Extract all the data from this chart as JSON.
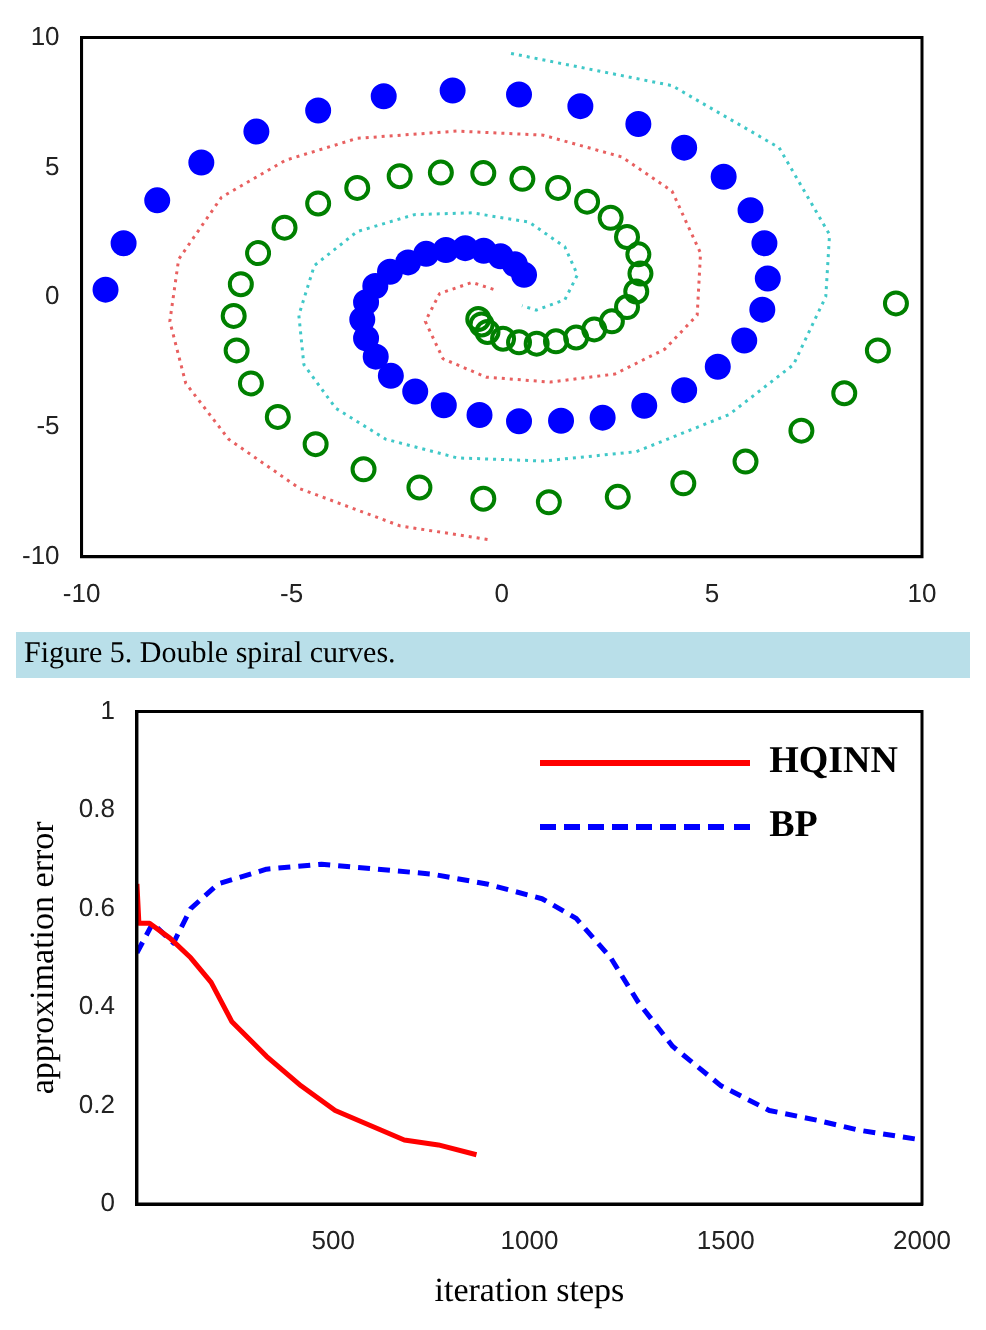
{
  "chart_data": [
    {
      "type": "scatter",
      "marker": "circle",
      "xlim": [
        -10,
        10
      ],
      "ylim": [
        -10,
        10
      ],
      "xticks": [
        -10,
        -5,
        0,
        5,
        10
      ],
      "yticks": [
        -10,
        -5,
        0,
        5,
        10
      ],
      "legend": false,
      "annotations": [
        "Figure 5. Double spiral curves."
      ],
      "series": [
        {
          "color": "#0000ff",
          "x": [
            -9.43,
            -9.0,
            -8.2,
            -7.15,
            -5.84,
            -4.37,
            -2.81,
            -1.17,
            0.41,
            1.87,
            3.25,
            4.34,
            5.28,
            5.92,
            6.25,
            6.33,
            6.2,
            5.77,
            5.14,
            4.34,
            3.39,
            2.4,
            1.41,
            0.41,
            -0.53,
            -1.38,
            -2.06,
            -2.64,
            -3.0,
            -3.23,
            -3.32,
            -3.23,
            -3.01,
            -2.66,
            -2.23,
            -1.8,
            -1.33,
            -0.87,
            -0.43,
            -0.03,
            0.31,
            0.53
          ],
          "values": [
            0.29,
            2.08,
            3.73,
            5.19,
            6.38,
            7.19,
            7.74,
            7.96,
            7.81,
            7.36,
            6.67,
            5.76,
            4.64,
            3.35,
            2.08,
            0.72,
            -0.48,
            -1.67,
            -2.68,
            -3.58,
            -4.18,
            -4.64,
            -4.76,
            -4.78,
            -4.54,
            -4.16,
            -3.63,
            -3.03,
            -2.29,
            -1.58,
            -0.86,
            -0.19,
            0.43,
            0.98,
            1.34,
            1.67,
            1.82,
            1.89,
            1.79,
            1.58,
            1.27,
            0.86
          ]
        },
        {
          "color": "#008000",
          "x": [
            -0.56,
            -0.48,
            -0.34,
            0.03,
            0.41,
            0.83,
            1.29,
            1.77,
            2.2,
            2.62,
            2.98,
            3.2,
            3.3,
            3.25,
            2.98,
            2.59,
            2.03,
            1.34,
            0.49,
            -0.44,
            -1.45,
            -2.43,
            -3.44,
            -4.37,
            -5.17,
            -5.8,
            -6.21,
            -6.38,
            -6.31,
            -5.97,
            -5.33,
            -4.43,
            -3.29,
            -1.96,
            -0.44,
            1.12,
            2.76,
            4.32,
            5.8,
            7.13,
            8.15,
            8.95,
            9.38
          ],
          "values": [
            -0.84,
            -1.05,
            -1.34,
            -1.6,
            -1.74,
            -1.79,
            -1.7,
            -1.55,
            -1.24,
            -0.93,
            -0.38,
            0.22,
            0.91,
            1.65,
            2.32,
            3.06,
            3.68,
            4.21,
            4.56,
            4.78,
            4.8,
            4.66,
            4.21,
            3.61,
            2.68,
            1.7,
            0.5,
            -0.72,
            -2.05,
            -3.32,
            -4.61,
            -5.66,
            -6.63,
            -7.33,
            -7.76,
            -7.9,
            -7.69,
            -7.17,
            -6.33,
            -5.14,
            -3.7,
            -2.05,
            -0.24
          ]
        },
        {
          "type": "line",
          "marker": "none",
          "line_style": "dotted",
          "color": "#40c8c8",
          "x": [
            0.22,
            4.05,
            6.6,
            7.8,
            7.71,
            6.94,
            5.41,
            3.2,
            0.99,
            -1.06,
            -2.76,
            -3.95,
            -4.71,
            -4.83,
            -4.46,
            -3.44,
            -2.08,
            -0.71,
            0.65,
            1.5,
            1.8,
            1.5,
            0.82,
            0.48
          ],
          "values": [
            9.39,
            8.15,
            5.76,
            2.41,
            0.02,
            -2.6,
            -4.52,
            -5.95,
            -6.31,
            -6.19,
            -5.47,
            -4.28,
            -2.6,
            -0.69,
            1.22,
            2.53,
            3.18,
            3.25,
            2.89,
            1.94,
            0.86,
            -0.1,
            -0.5,
            -0.33
          ]
        },
        {
          "type": "line",
          "marker": "none",
          "line_style": "dotted",
          "color": "#e86060",
          "x": [
            -0.34,
            -2.42,
            -4.8,
            -6.5,
            -7.52,
            -7.9,
            -7.69,
            -6.67,
            -5.14,
            -3.44,
            -1.06,
            0.99,
            2.86,
            4.05,
            4.73,
            4.65,
            3.88,
            2.69,
            1.16,
            -0.37,
            -1.4,
            -1.82,
            -1.48,
            -0.71,
            -0.12
          ],
          "values": [
            -9.33,
            -8.81,
            -7.38,
            -5.47,
            -3.32,
            -0.93,
            1.46,
            3.85,
            5.28,
            6.12,
            6.4,
            6.24,
            5.4,
            4.09,
            1.7,
            -0.69,
            -2.0,
            -2.96,
            -3.27,
            -3.08,
            -2.37,
            -0.93,
            0.14,
            0.57,
            0.26
          ]
        }
      ]
    },
    {
      "type": "line",
      "xlabel": "iteration steps",
      "ylabel": "approximation error",
      "xlim": [
        0,
        2000
      ],
      "ylim": [
        0,
        1
      ],
      "xticks": [
        500,
        1000,
        1500,
        2000
      ],
      "yticks": [
        0,
        0.2,
        0.4,
        0.6,
        0.8,
        1
      ],
      "legend": "top right",
      "series": [
        {
          "name": "HQINN",
          "color": "#ff0000",
          "line_style": "solid",
          "x": [
            0,
            5,
            32,
            84,
            137,
            189,
            242,
            330,
            418,
            505,
            593,
            681,
            768,
            865
          ],
          "values": [
            0.65,
            0.57,
            0.57,
            0.54,
            0.5,
            0.45,
            0.37,
            0.3,
            0.24,
            0.19,
            0.16,
            0.13,
            0.12,
            0.1
          ]
        },
        {
          "name": "BP",
          "color": "#0000ff",
          "line_style": "dashed",
          "x": [
            0,
            40,
            93,
            137,
            207,
            330,
            470,
            611,
            751,
            891,
            1032,
            1119,
            1207,
            1277,
            1365,
            1488,
            1611,
            1733,
            1839,
            2000
          ],
          "values": [
            0.51,
            0.57,
            0.53,
            0.6,
            0.65,
            0.68,
            0.69,
            0.68,
            0.67,
            0.65,
            0.62,
            0.58,
            0.5,
            0.41,
            0.32,
            0.24,
            0.19,
            0.17,
            0.15,
            0.13
          ]
        }
      ]
    }
  ]
}
